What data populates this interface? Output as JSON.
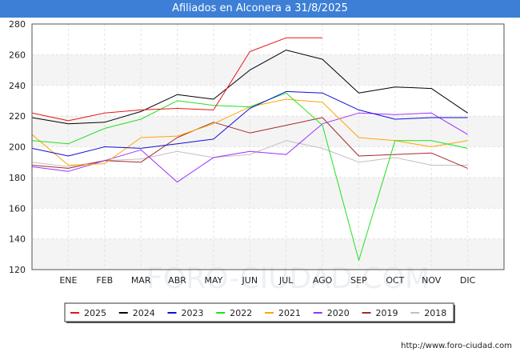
{
  "chart_data": {
    "type": "line",
    "title": "Afiliados en Alconera a 31/8/2025",
    "categories": [
      "",
      "ENE",
      "FEB",
      "MAR",
      "ABR",
      "MAY",
      "JUN",
      "JUL",
      "AGO",
      "SEP",
      "OCT",
      "NOV",
      "DIC"
    ],
    "ylim": [
      120,
      280
    ],
    "yticks": [
      120,
      140,
      160,
      180,
      200,
      220,
      240,
      260,
      280
    ],
    "xlabel": "",
    "ylabel": "",
    "legend_position": "bottom",
    "series": [
      {
        "name": "2025",
        "color": "#e8151a",
        "values": [
          222,
          217,
          222,
          224,
          225,
          224,
          262,
          271,
          271,
          null,
          null,
          null,
          null
        ]
      },
      {
        "name": "2024",
        "color": "#000000",
        "values": [
          219,
          215,
          216,
          223,
          234,
          231,
          250,
          263,
          257,
          235,
          239,
          238,
          222
        ]
      },
      {
        "name": "2023",
        "color": "#0f0fd9",
        "values": [
          199,
          194,
          200,
          199,
          202,
          205,
          225,
          236,
          235,
          224,
          218,
          219,
          219
        ]
      },
      {
        "name": "2022",
        "color": "#22e01f",
        "values": [
          204,
          202,
          212,
          218,
          230,
          227,
          226,
          235,
          214,
          126,
          204,
          204,
          199
        ]
      },
      {
        "name": "2021",
        "color": "#ffa500",
        "values": [
          208,
          188,
          189,
          206,
          207,
          215,
          226,
          231,
          229,
          206,
          204,
          200,
          204
        ]
      },
      {
        "name": "2020",
        "color": "#9b30ff",
        "values": [
          187,
          184,
          191,
          198,
          177,
          193,
          197,
          195,
          215,
          222,
          221,
          222,
          208
        ]
      },
      {
        "name": "2019",
        "color": "#a52a2a",
        "values": [
          188,
          186,
          191,
          190,
          206,
          216,
          209,
          214,
          219,
          194,
          195,
          196,
          186
        ]
      },
      {
        "name": "2018",
        "color": "#c0c0c0",
        "values": [
          190,
          187,
          191,
          192,
          197,
          193,
          195,
          204,
          199,
          190,
          193,
          188,
          188
        ]
      }
    ],
    "watermark": "FORO-CIUDAD.COM"
  },
  "footer": {
    "url": "http://www.foro-ciudad.com"
  }
}
